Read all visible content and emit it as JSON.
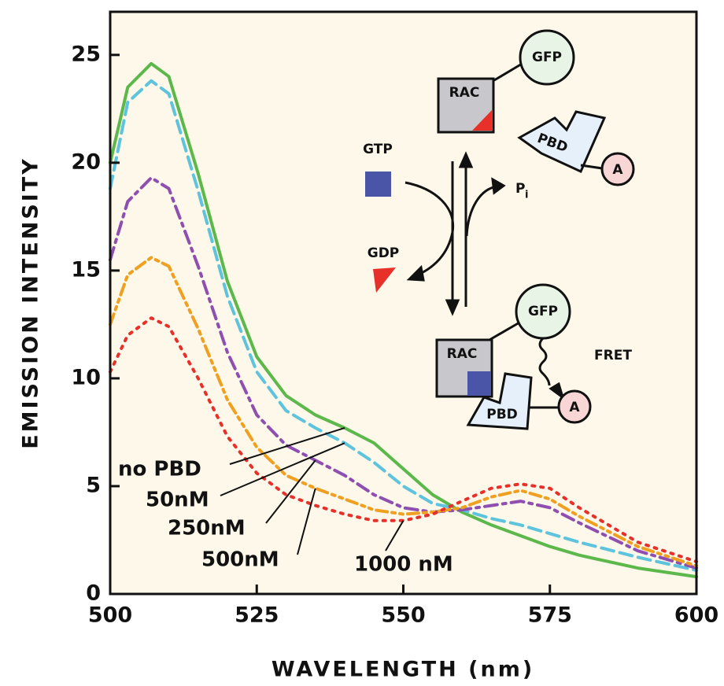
{
  "chart_data": {
    "type": "line",
    "ylabel": "EMISSION INTENSITY",
    "xlabel": "WAVELENGTH (nm)",
    "xlim": [
      500,
      600
    ],
    "xticks": [
      500,
      525,
      550,
      575,
      600
    ],
    "ylim": [
      0,
      27
    ],
    "yticks": [
      0,
      5,
      10,
      15,
      20,
      25
    ],
    "x": [
      500,
      503,
      507,
      510,
      515,
      520,
      525,
      530,
      535,
      540,
      545,
      550,
      555,
      560,
      565,
      570,
      575,
      580,
      590,
      600
    ],
    "series": [
      {
        "name": "no PBD",
        "color": "#5cb84a",
        "style": "solid",
        "values": [
          20.0,
          23.5,
          24.6,
          24.0,
          19.5,
          14.5,
          11.0,
          9.2,
          8.3,
          7.7,
          7.0,
          5.8,
          4.6,
          3.8,
          3.2,
          2.7,
          2.2,
          1.8,
          1.2,
          0.8
        ]
      },
      {
        "name": "50nM",
        "color": "#5ec3dc",
        "style": "dashed",
        "values": [
          18.8,
          22.8,
          23.8,
          23.2,
          18.7,
          13.8,
          10.3,
          8.5,
          7.7,
          7.0,
          6.1,
          5.0,
          4.2,
          3.9,
          3.5,
          3.2,
          2.8,
          2.4,
          1.7,
          1.1
        ]
      },
      {
        "name": "250nM",
        "color": "#8e4fb0",
        "style": "dashdot",
        "values": [
          15.5,
          18.2,
          19.3,
          18.8,
          15.2,
          11.2,
          8.3,
          6.9,
          6.2,
          5.5,
          4.6,
          4.0,
          3.8,
          3.9,
          4.1,
          4.3,
          4.0,
          3.3,
          2.0,
          1.2
        ]
      },
      {
        "name": "500nM",
        "color": "#f0a020",
        "style": "dashdotdot",
        "values": [
          12.5,
          14.8,
          15.6,
          15.2,
          12.3,
          9.0,
          6.8,
          5.5,
          4.9,
          4.4,
          3.9,
          3.7,
          3.8,
          4.0,
          4.5,
          4.8,
          4.4,
          3.6,
          2.2,
          1.3
        ]
      },
      {
        "name": "1000 nM",
        "color": "#e8302a",
        "style": "dotted",
        "values": [
          10.3,
          12.0,
          12.8,
          12.4,
          10.0,
          7.3,
          5.6,
          4.6,
          4.1,
          3.7,
          3.4,
          3.4,
          3.7,
          4.3,
          4.9,
          5.1,
          4.9,
          4.0,
          2.4,
          1.5
        ]
      }
    ],
    "annotations": [
      "GFP",
      "RAC",
      "PBD",
      "A",
      "GTP",
      "P",
      "i",
      "GDP",
      "GFP",
      "FRET",
      "RAC",
      "A",
      "PBD"
    ]
  }
}
